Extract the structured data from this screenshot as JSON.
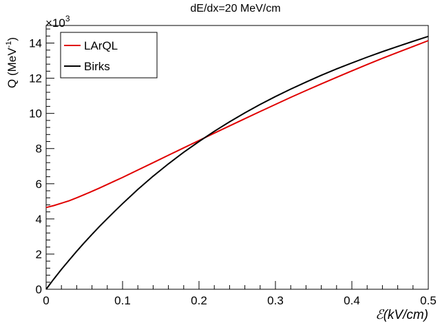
{
  "chart_data": {
    "type": "line",
    "title": "dE/dx=20 MeV/cm",
    "xlabel": "ℰ(kV/cm)",
    "ylabel": "Q (MeV",
    "ylabel_sup": "-1",
    "ylabel_close": ")",
    "y_multiplier_prefix": "×10",
    "y_multiplier_exp": "3",
    "xlim": [
      0,
      0.5
    ],
    "ylim": [
      0,
      15000
    ],
    "x_ticks": [
      0,
      0.1,
      0.2,
      0.3,
      0.4,
      0.5
    ],
    "x_tick_labels": [
      "0",
      "0.1",
      "0.2",
      "0.3",
      "0.4",
      "0.5"
    ],
    "y_ticks": [
      0,
      2000,
      4000,
      6000,
      8000,
      10000,
      12000,
      14000
    ],
    "y_tick_labels": [
      "0",
      "2",
      "4",
      "6",
      "8",
      "10",
      "12",
      "14"
    ],
    "grid": false,
    "legend_position": "top-left",
    "series": [
      {
        "name": "LArQL",
        "color": "#e00000",
        "x": [
          0,
          0.01,
          0.02,
          0.03,
          0.04,
          0.05,
          0.06,
          0.07,
          0.08,
          0.09,
          0.1,
          0.12,
          0.14,
          0.16,
          0.18,
          0.2,
          0.22,
          0.24,
          0.26,
          0.28,
          0.3,
          0.32,
          0.34,
          0.36,
          0.38,
          0.4,
          0.42,
          0.44,
          0.46,
          0.48,
          0.5
        ],
        "values": [
          4650,
          4760,
          4890,
          5030,
          5200,
          5380,
          5570,
          5760,
          5960,
          6160,
          6360,
          6780,
          7200,
          7620,
          8040,
          8460,
          8880,
          9290,
          9700,
          10110,
          10510,
          10910,
          11300,
          11680,
          12050,
          12420,
          12780,
          13130,
          13470,
          13800,
          14140
        ]
      },
      {
        "name": "Birks",
        "color": "#000000",
        "x": [
          0,
          0.01,
          0.02,
          0.03,
          0.04,
          0.05,
          0.06,
          0.07,
          0.08,
          0.09,
          0.1,
          0.12,
          0.14,
          0.16,
          0.18,
          0.2,
          0.22,
          0.24,
          0.26,
          0.28,
          0.3,
          0.32,
          0.34,
          0.36,
          0.38,
          0.4,
          0.42,
          0.44,
          0.46,
          0.48,
          0.5
        ],
        "values": [
          0,
          580,
          1130,
          1650,
          2160,
          2650,
          3120,
          3580,
          4020,
          4450,
          4870,
          5680,
          6430,
          7130,
          7790,
          8400,
          8980,
          9520,
          10030,
          10510,
          10960,
          11380,
          11780,
          12170,
          12530,
          12870,
          13200,
          13510,
          13810,
          14100,
          14380
        ]
      }
    ]
  }
}
